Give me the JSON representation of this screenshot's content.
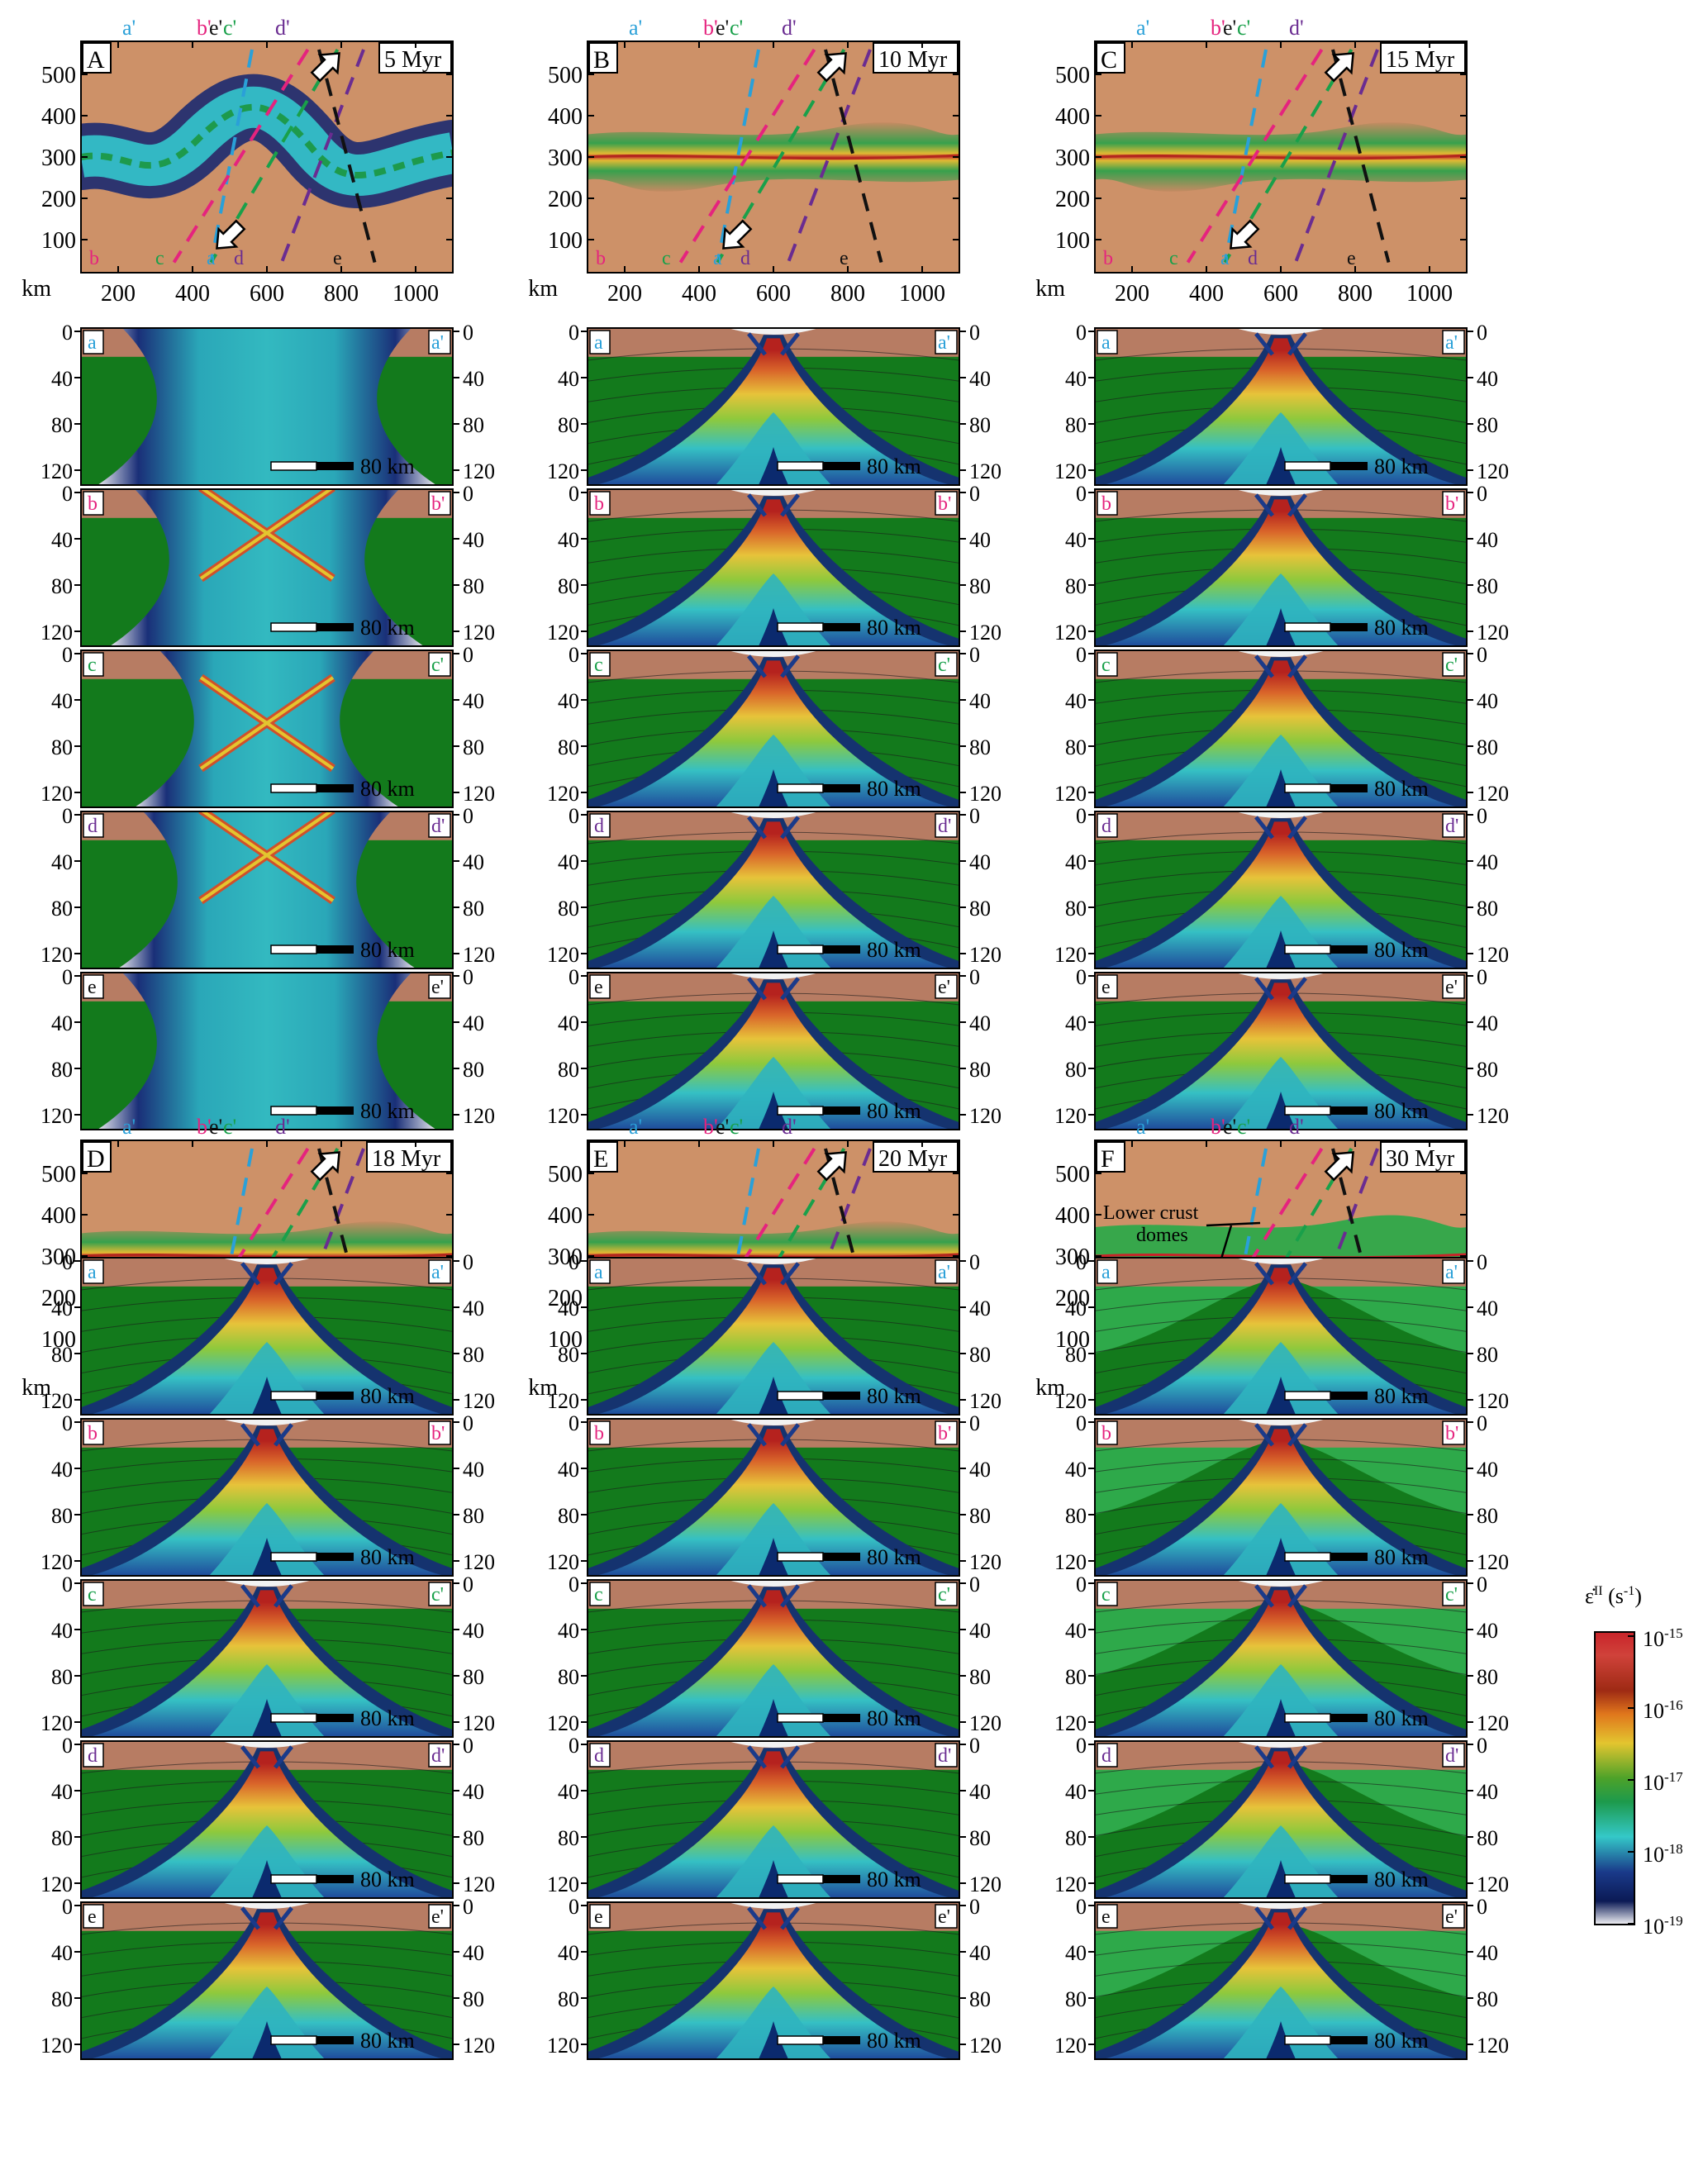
{
  "colors": {
    "upper_crust": "#cd9168",
    "upper_crust_dark": "#b77c63",
    "lower_crust": "#137a1c",
    "lower_crust_light": "#2ea94a",
    "mantle_cyan": "#33c1c6",
    "mantle_deep": "#0d2a6e",
    "hot_red": "#c9242a",
    "hot_yellow": "#e3c52f",
    "lightgray": "#c9c9d6",
    "profile_a": "#2aa0d8",
    "profile_b": "#e5237e",
    "profile_c": "#19a04a",
    "profile_d": "#6a2c91",
    "profile_e": "#111111"
  },
  "units": {
    "km": "km"
  },
  "map_axes": {
    "x_ticks": [
      "200",
      "400",
      "600",
      "800",
      "1000"
    ],
    "y_ticks": [
      "500",
      "400",
      "300",
      "200",
      "100"
    ],
    "unit": "km"
  },
  "section_axes": {
    "depth_ticks": [
      "0",
      "40",
      "80",
      "120"
    ],
    "scale_bar": "80 km"
  },
  "profiles": [
    {
      "id": "a",
      "top": "a'",
      "bottom": "a",
      "color": "#2aa0d8"
    },
    {
      "id": "b",
      "top": "b'",
      "bottom": "b",
      "color": "#e5237e"
    },
    {
      "id": "c",
      "top": "c'",
      "bottom": "c",
      "color": "#19a04a"
    },
    {
      "id": "d",
      "top": "d'",
      "bottom": "d",
      "color": "#6a2c91"
    },
    {
      "id": "e",
      "top": "e'",
      "bottom": "e",
      "color": "#111111"
    }
  ],
  "section_labels": [
    {
      "left": "a",
      "right": "a'"
    },
    {
      "left": "b",
      "right": "b'"
    },
    {
      "left": "c",
      "right": "c'"
    },
    {
      "left": "d",
      "right": "d'"
    },
    {
      "left": "e",
      "right": "e'"
    }
  ],
  "panels": [
    {
      "letter": "A",
      "time": "5 Myr",
      "stage": 0
    },
    {
      "letter": "B",
      "time": "10 Myr",
      "stage": 1
    },
    {
      "letter": "C",
      "time": "15 Myr",
      "stage": 2
    },
    {
      "letter": "D",
      "time": "18 Myr",
      "stage": 3
    },
    {
      "letter": "E",
      "time": "20 Myr",
      "stage": 4
    },
    {
      "letter": "F",
      "time": "30 Myr",
      "stage": 5
    }
  ],
  "annotation": {
    "text_line1": "Lower crust",
    "text_line2": "domes"
  },
  "colorbar": {
    "title": "ε̇II (s-1)",
    "title_main": "ε̇",
    "title_sup": "II",
    "title_unit": "(s",
    "title_unit_sup": "-1",
    "title_close": ")",
    "labels": [
      {
        "base": "10",
        "exp": "-15"
      },
      {
        "base": "10",
        "exp": "-16"
      },
      {
        "base": "10",
        "exp": "-17"
      },
      {
        "base": "10",
        "exp": "-18"
      },
      {
        "base": "10",
        "exp": "-19"
      }
    ]
  }
}
